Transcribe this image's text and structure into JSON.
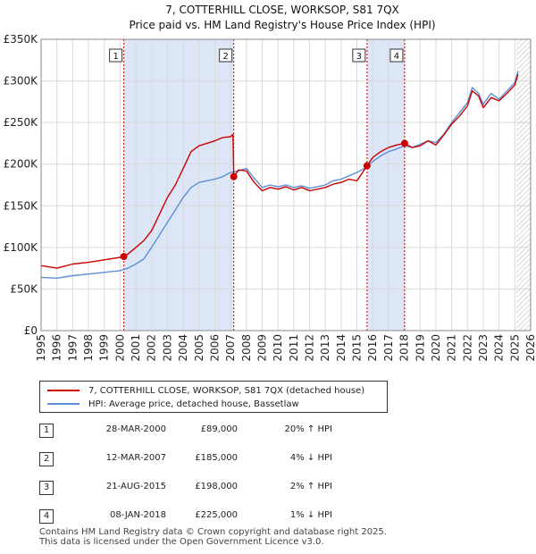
{
  "chart_data": {
    "type": "line",
    "title": "7, COTTERHILL CLOSE, WORKSOP, S81 7QX",
    "subtitle": "Price paid vs. HM Land Registry's House Price Index (HPI)",
    "xlim": [
      1995,
      2026
    ],
    "ylim": [
      0,
      350000
    ],
    "x_ticks": [
      "1995",
      "1996",
      "1997",
      "1998",
      "1999",
      "2000",
      "2001",
      "2002",
      "2003",
      "2004",
      "2005",
      "2006",
      "2007",
      "2008",
      "2009",
      "2010",
      "2011",
      "2012",
      "2013",
      "2014",
      "2015",
      "2016",
      "2017",
      "2018",
      "2019",
      "2020",
      "2021",
      "2022",
      "2023",
      "2024",
      "2025",
      "2026"
    ],
    "y_ticks": [
      {
        "value": 0,
        "label": "£0"
      },
      {
        "value": 50000,
        "label": "£50K"
      },
      {
        "value": 100000,
        "label": "£100K"
      },
      {
        "value": 150000,
        "label": "£150K"
      },
      {
        "value": 200000,
        "label": "£200K"
      },
      {
        "value": 250000,
        "label": "£250K"
      },
      {
        "value": 300000,
        "label": "£300K"
      },
      {
        "value": 350000,
        "label": "£350K"
      }
    ],
    "shaded_ranges": [
      [
        2000.24,
        2007.2
      ],
      [
        2015.64,
        2018.02
      ]
    ],
    "future_hatch_from": 2025.1,
    "series": [
      {
        "name": "7, COTTERHILL CLOSE, WORKSOP, S81 7QX (detached house)",
        "color": "#cc0000",
        "x": [
          1995,
          1996,
          1997,
          1998,
          1999,
          2000,
          2000.24,
          2000.5,
          2001,
          2001.5,
          2002,
          2002.5,
          2003,
          2003.5,
          2004,
          2004.5,
          2005,
          2005.5,
          2006,
          2006.5,
          2007,
          2007.15,
          2007.2,
          2007.5,
          2008,
          2008.5,
          2009,
          2009.5,
          2010,
          2010.5,
          2011,
          2011.5,
          2012,
          2012.5,
          2013,
          2013.5,
          2014,
          2014.5,
          2015,
          2015.64,
          2016,
          2016.5,
          2017,
          2017.5,
          2018.02,
          2018.5,
          2019,
          2019.5,
          2020,
          2020.5,
          2021,
          2021.5,
          2022,
          2022.3,
          2022.7,
          2023,
          2023.5,
          2024,
          2024.5,
          2025,
          2025.2
        ],
        "values": [
          78000,
          75000,
          80000,
          82000,
          85000,
          88000,
          89000,
          92000,
          100000,
          108000,
          120000,
          140000,
          160000,
          175000,
          195000,
          215000,
          222000,
          225000,
          228000,
          232000,
          233000,
          236000,
          185000,
          193000,
          192000,
          178000,
          168000,
          172000,
          170000,
          173000,
          169000,
          172000,
          168000,
          170000,
          172000,
          176000,
          178000,
          182000,
          180000,
          198000,
          208000,
          215000,
          220000,
          223000,
          225000,
          220000,
          222000,
          228000,
          223000,
          235000,
          248000,
          258000,
          270000,
          288000,
          282000,
          268000,
          280000,
          276000,
          285000,
          295000,
          308000
        ]
      },
      {
        "name": "HPI: Average price, detached house, Bassetlaw",
        "color": "#5b8fd6",
        "x": [
          1995,
          1996,
          1997,
          1998,
          1999,
          2000,
          2000.5,
          2001,
          2001.5,
          2002,
          2002.5,
          2003,
          2003.5,
          2004,
          2004.5,
          2005,
          2005.5,
          2006,
          2006.5,
          2007,
          2007.5,
          2008,
          2008.5,
          2009,
          2009.5,
          2010,
          2010.5,
          2011,
          2011.5,
          2012,
          2012.5,
          2013,
          2013.5,
          2014,
          2014.5,
          2015,
          2015.5,
          2016,
          2016.5,
          2017,
          2017.5,
          2018,
          2018.5,
          2019,
          2019.5,
          2020,
          2020.5,
          2021,
          2021.5,
          2022,
          2022.3,
          2022.7,
          2023,
          2023.5,
          2024,
          2024.5,
          2025,
          2025.2
        ],
        "values": [
          64000,
          63000,
          66000,
          68000,
          70000,
          72000,
          75000,
          80000,
          86000,
          100000,
          115000,
          130000,
          145000,
          160000,
          172000,
          178000,
          180000,
          182000,
          185000,
          190000,
          192000,
          195000,
          183000,
          172000,
          175000,
          173000,
          175000,
          172000,
          174000,
          171000,
          173000,
          175000,
          180000,
          182000,
          186000,
          190000,
          195000,
          203000,
          210000,
          215000,
          218000,
          222000,
          220000,
          224000,
          228000,
          226000,
          236000,
          250000,
          262000,
          274000,
          292000,
          285000,
          272000,
          285000,
          278000,
          288000,
          298000,
          312000
        ]
      }
    ],
    "transactions": [
      {
        "marker": "1",
        "x": 2000.24,
        "value": 89000
      },
      {
        "marker": "2",
        "x": 2007.2,
        "value": 185000
      },
      {
        "marker": "3",
        "x": 2015.64,
        "value": 198000
      },
      {
        "marker": "4",
        "x": 2018.02,
        "value": 225000
      }
    ]
  },
  "legend": {
    "property_label": "7, COTTERHILL CLOSE, WORKSOP, S81 7QX (detached house)",
    "hpi_label": "HPI: Average price, detached house, Bassetlaw"
  },
  "table": [
    {
      "marker": "1",
      "date": "28-MAR-2000",
      "price": "£89,000",
      "hpi": "20% ↑ HPI"
    },
    {
      "marker": "2",
      "date": "12-MAR-2007",
      "price": "£185,000",
      "hpi": "4% ↓ HPI"
    },
    {
      "marker": "3",
      "date": "21-AUG-2015",
      "price": "£198,000",
      "hpi": "2% ↑ HPI"
    },
    {
      "marker": "4",
      "date": "08-JAN-2018",
      "price": "£225,000",
      "hpi": "1% ↓ HPI"
    }
  ],
  "footer": {
    "line1": "Contains HM Land Registry data © Crown copyright and database right 2025.",
    "line2": "This data is licensed under the Open Government Licence v3.0."
  },
  "colors": {
    "property": "#cc0000",
    "hpi": "#5b8fd6",
    "shade": "#dde6f7",
    "grid": "#d9d9d9"
  }
}
